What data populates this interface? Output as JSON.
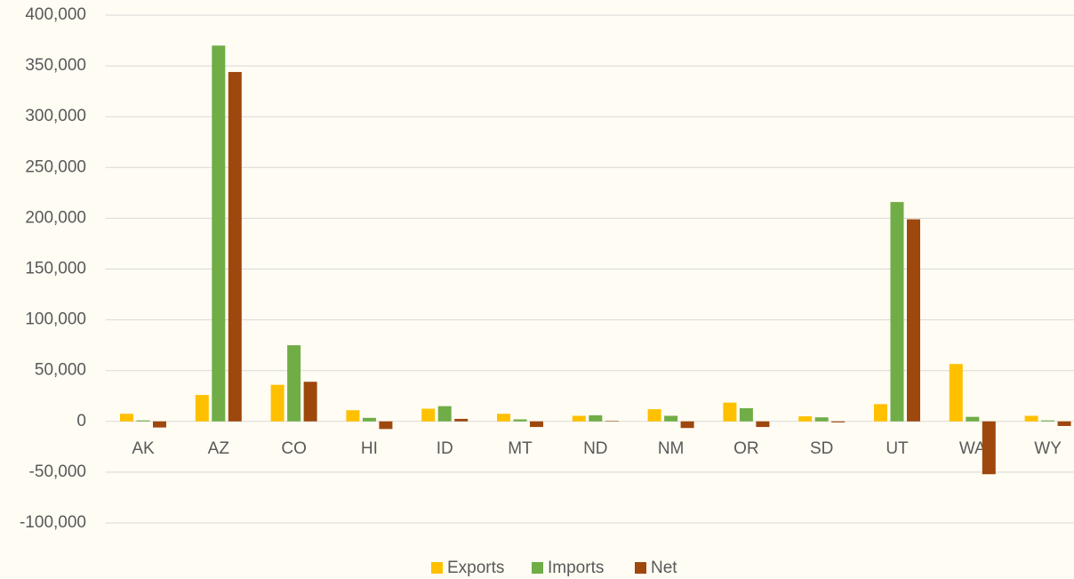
{
  "chart_data": {
    "type": "bar",
    "categories": [
      "AK",
      "AZ",
      "CO",
      "HI",
      "ID",
      "MT",
      "ND",
      "NM",
      "OR",
      "SD",
      "UT",
      "WA",
      "WY"
    ],
    "series": [
      {
        "name": "Exports",
        "color": "#ffc000",
        "values": [
          7500,
          26000,
          36000,
          11000,
          12500,
          7500,
          5500,
          12000,
          18500,
          5000,
          17000,
          56500,
          5500
        ]
      },
      {
        "name": "Imports",
        "color": "#70ad47",
        "values": [
          1000,
          370000,
          75000,
          3500,
          15000,
          2000,
          6000,
          5500,
          13000,
          4000,
          216000,
          4500,
          1000
        ]
      },
      {
        "name": "Net",
        "color": "#9e480e",
        "values": [
          -6000,
          344000,
          39000,
          -7500,
          2500,
          -5500,
          500,
          -6500,
          -5500,
          -1000,
          199000,
          -52000,
          -4500
        ]
      }
    ],
    "ylim": [
      -100000,
      400000
    ],
    "yticks": [
      {
        "value": -100000,
        "label": "-100,000"
      },
      {
        "value": -50000,
        "label": "-50,000"
      },
      0,
      {
        "value": 50000,
        "label": "50,000"
      },
      {
        "value": 100000,
        "label": "100,000"
      },
      {
        "value": 150000,
        "label": "150,000"
      },
      {
        "value": 200000,
        "label": "200,000"
      },
      {
        "value": 250000,
        "label": "250,000"
      },
      {
        "value": 300000,
        "label": "300,000"
      },
      {
        "value": 350000,
        "label": "350,000"
      },
      {
        "value": 400000,
        "label": "400,000"
      }
    ],
    "grid": true,
    "legend": "bottom"
  }
}
